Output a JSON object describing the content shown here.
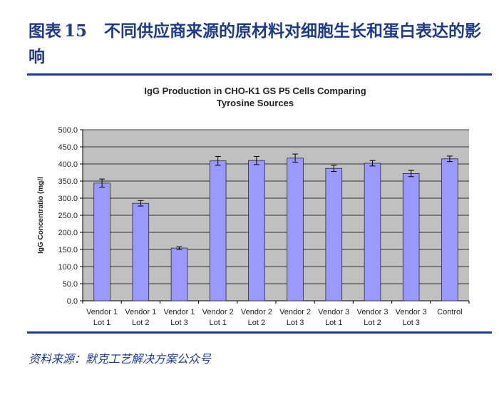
{
  "figure": {
    "label": "图表",
    "number": "15",
    "title": "不同供应商来源的原材料对细胞生长和蛋白表达的影响"
  },
  "source": "资料来源：默克工艺解决方案公众号",
  "colors": {
    "bar": "#9999ff",
    "plot_bg": "#c0c0c0",
    "accent": "#1f3b87"
  },
  "chart_data": {
    "type": "bar",
    "title_lines": [
      "IgG Production in CHO-K1 GS P5 Cells Comparing",
      "Tyrosine Sources"
    ],
    "xlabel": "",
    "ylabel": "IgG Concentratio (mg/l",
    "ylim": [
      0,
      500
    ],
    "yticks": [
      "0.0",
      "50.0",
      "100.0",
      "150.0",
      "200.0",
      "250.0",
      "300.0",
      "350.0",
      "400.0",
      "450.0",
      "500.0"
    ],
    "grid": true,
    "categories": [
      [
        "Vendor 1",
        "Lot 1"
      ],
      [
        "Vendor 1",
        "Lot 2"
      ],
      [
        "Vendor 1",
        "Lot 3"
      ],
      [
        "Vendor 2",
        "Lot 1"
      ],
      [
        "Vendor 2",
        "Lot 2"
      ],
      [
        "Vendor 2",
        "Lot 3"
      ],
      [
        "Vendor 3",
        "Lot 1"
      ],
      [
        "Vendor 3",
        "Lot 2"
      ],
      [
        "Vendor 3",
        "Lot 3"
      ],
      [
        "Control",
        ""
      ]
    ],
    "values": [
      344,
      285,
      154,
      409,
      410,
      417,
      387,
      402,
      372,
      415
    ],
    "errors": [
      12,
      8,
      4,
      13,
      12,
      12,
      9,
      8,
      9,
      8
    ]
  }
}
